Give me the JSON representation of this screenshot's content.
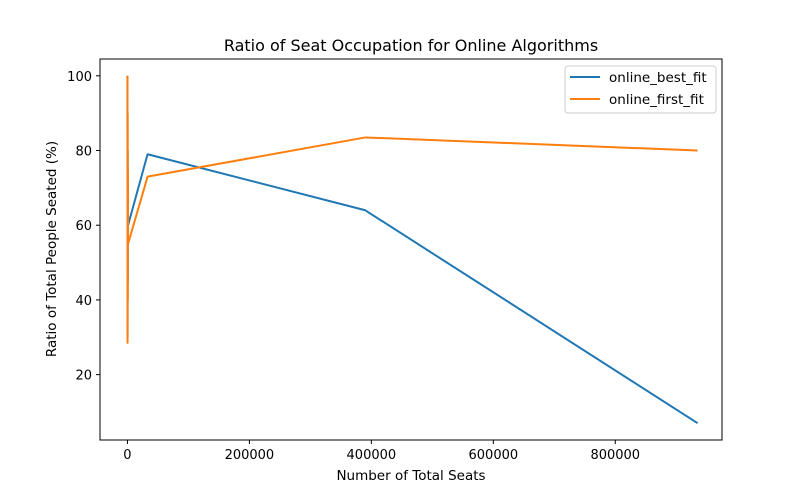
{
  "chart_data": {
    "type": "line",
    "title": "Ratio of Seat Occupation for Online Algorithms",
    "xlabel": "Number of Total Seats",
    "ylabel": "Ratio of Total People Seated (%)",
    "xlim": [
      -45000,
      975000
    ],
    "ylim": [
      2.5,
      104.5
    ],
    "xticks": [
      0,
      200000,
      400000,
      600000,
      800000
    ],
    "xtick_labels": [
      "0",
      "200000",
      "400000",
      "600000",
      "800000"
    ],
    "yticks": [
      20,
      40,
      60,
      80,
      100
    ],
    "ytick_labels": [
      "20",
      "40",
      "60",
      "80",
      "100"
    ],
    "grid": false,
    "legend_position": "top-right",
    "series": [
      {
        "name": "online_best_fit",
        "color": "#1f77b4",
        "x": [
          0,
          200,
          400,
          600,
          800,
          1000,
          33000,
          390000,
          935000
        ],
        "y": [
          100,
          30,
          80,
          45,
          70,
          60,
          79,
          64,
          7
        ]
      },
      {
        "name": "online_first_fit",
        "color": "#ff7f0e",
        "x": [
          0,
          200,
          400,
          600,
          800,
          1000,
          33000,
          390000,
          935000
        ],
        "y": [
          100,
          28.5,
          90,
          40,
          75,
          55,
          73,
          83.5,
          80
        ]
      }
    ]
  }
}
